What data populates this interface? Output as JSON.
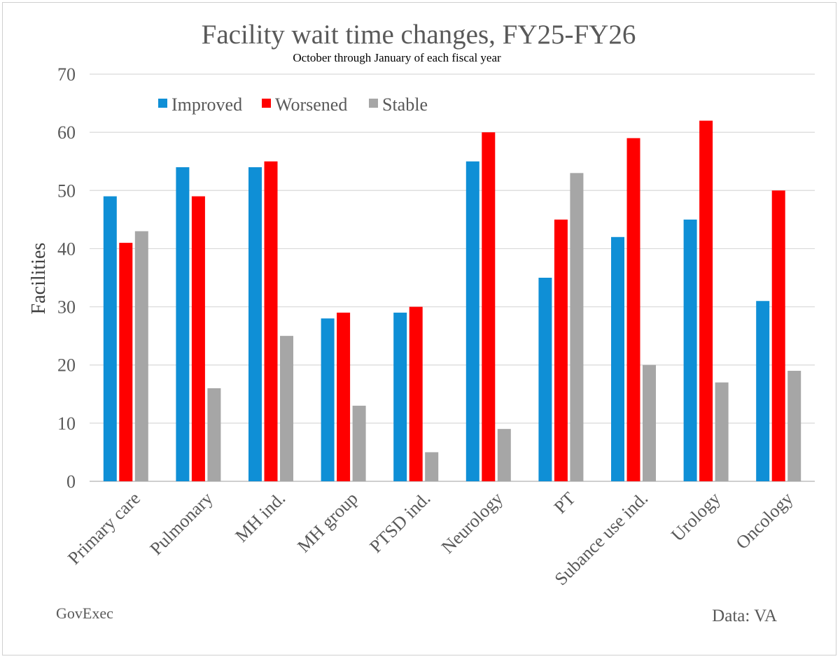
{
  "chart_data": {
    "type": "bar",
    "title": "Facility wait time changes, FY25-FY26",
    "subtitle": "October through January of each fiscal year",
    "xlabel": "",
    "ylabel": "Facilities",
    "ylim": [
      0,
      70
    ],
    "yticks": [
      0,
      10,
      20,
      30,
      40,
      50,
      60,
      70
    ],
    "grid": true,
    "legend_position": "top-left",
    "categories": [
      "Primary care",
      "Pulmonary",
      "MH ind.",
      "MH group",
      "PTSD ind.",
      "Neurology",
      "PT",
      "Subance use ind.",
      "Urology",
      "Oncology"
    ],
    "series": [
      {
        "name": "Improved",
        "color": "#0f8fd6",
        "values": [
          49,
          54,
          54,
          28,
          29,
          55,
          35,
          42,
          45,
          31
        ]
      },
      {
        "name": "Worsened",
        "color": "#ff0000",
        "values": [
          41,
          49,
          55,
          29,
          30,
          60,
          45,
          59,
          62,
          50
        ]
      },
      {
        "name": "Stable",
        "color": "#a6a6a6",
        "values": [
          43,
          16,
          25,
          13,
          5,
          9,
          53,
          20,
          17,
          19
        ]
      }
    ],
    "source_left": "GovExec",
    "source_right": "Data: VA"
  }
}
